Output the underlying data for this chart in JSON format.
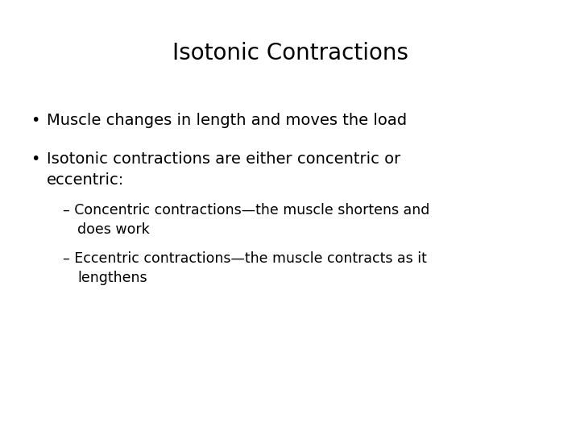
{
  "title": "Isotonic Contractions",
  "background_color": "#ffffff",
  "text_color": "#000000",
  "title_fontsize": 20,
  "body_fontsize": 14,
  "sub_fontsize": 12.5,
  "bullet1": "Muscle changes in length and moves the load",
  "bullet2_line1": "Isotonic contractions are either concentric or",
  "bullet2_line2": "eccentric:",
  "sub1_line1": "– Concentric contractions—the muscle shortens and",
  "sub1_line2": "does work",
  "sub2_line1": "– Eccentric contractions—the muscle contracts as it",
  "sub2_line2": "lengthens",
  "font_family": "DejaVu Sans"
}
